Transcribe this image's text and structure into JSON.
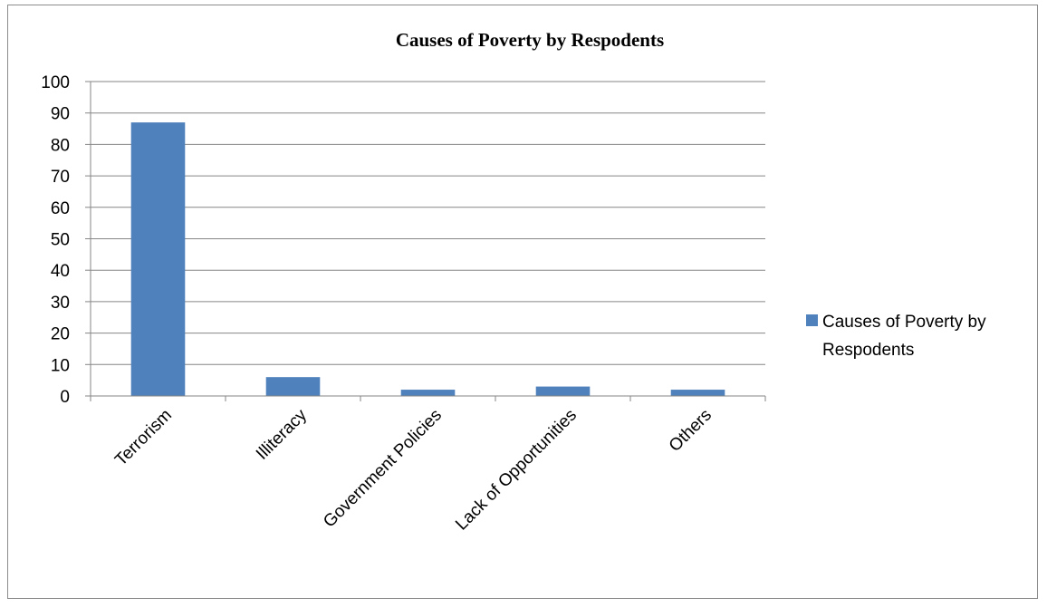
{
  "chart_data": {
    "type": "bar",
    "title": "Causes of Poverty by Respodents",
    "categories": [
      "Terrorism",
      "Illiteracy",
      "Government Policies",
      "Lack of Opportunities",
      "Others"
    ],
    "series": [
      {
        "name": "Causes of Poverty by Respodents",
        "values": [
          87,
          6,
          2,
          3,
          2
        ]
      }
    ],
    "ylim": [
      0,
      100
    ],
    "yticks": [
      0,
      10,
      20,
      30,
      40,
      50,
      60,
      70,
      80,
      90,
      100
    ],
    "grid": true,
    "legend": {
      "position": "right",
      "entries": [
        "Causes of Poverty by",
        "Respodents"
      ]
    },
    "colors": {
      "bar": "#4f81bd",
      "grid": "#868686",
      "axis": "#868686"
    }
  }
}
